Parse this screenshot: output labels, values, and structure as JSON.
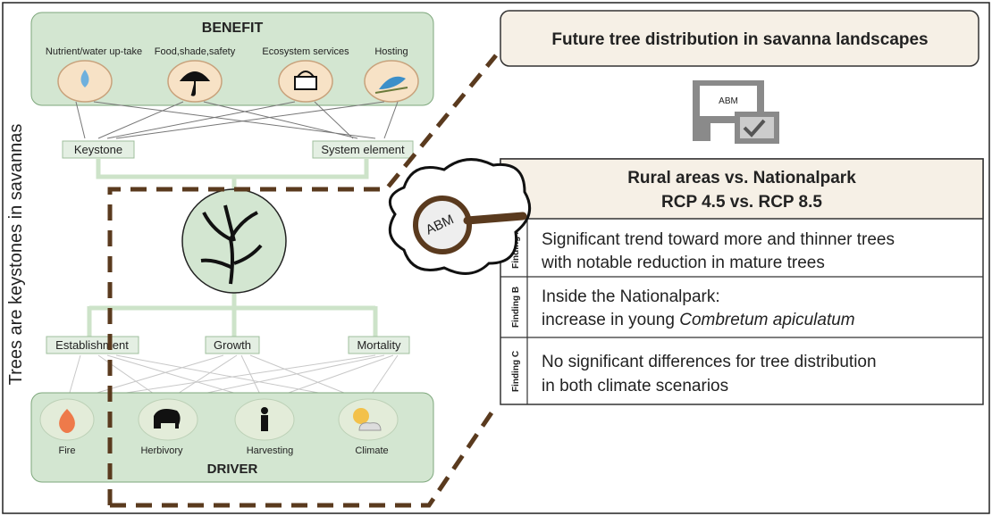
{
  "side_label": "Trees are keystones in savannas",
  "benefit": {
    "title": "BENEFIT",
    "items": [
      "Nutrient/water up-take",
      "Food,shade,safety",
      "Ecosystem services",
      "Hosting"
    ]
  },
  "roles": [
    "Keystone",
    "System element"
  ],
  "processes": [
    "Establishment",
    "Growth",
    "Mortality"
  ],
  "driver": {
    "title": "DRIVER",
    "items": [
      "Fire",
      "Herbivory",
      "Harvesting",
      "Climate"
    ]
  },
  "abm_icon_label": "ABM",
  "magnifier_label": "ABM",
  "future_title": "Future tree distribution in savanna landscapes",
  "findings": {
    "title_lines": [
      "Rural areas vs. Nationalpark",
      "RCP 4.5  vs. RCP 8.5"
    ],
    "rows": [
      {
        "label": "Finding A",
        "lines": [
          "Significant trend toward more and thinner trees",
          "with notable reduction in mature trees"
        ]
      },
      {
        "label": "Finding B",
        "lines": [
          "Inside the Nationalpark:",
          "increase in young "
        ],
        "species": "Combretum apiculatum"
      },
      {
        "label": "Finding C",
        "lines": [
          "No significant differences for tree distribution",
          "in both climate scenarios"
        ]
      }
    ]
  }
}
